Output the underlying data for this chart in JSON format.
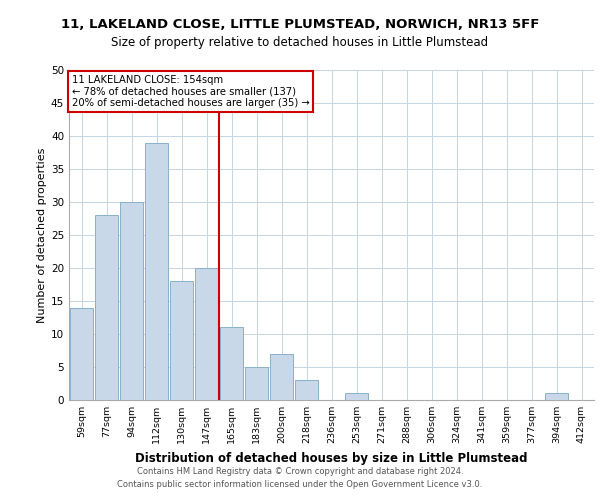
{
  "title_line1": "11, LAKELAND CLOSE, LITTLE PLUMSTEAD, NORWICH, NR13 5FF",
  "title_line2": "Size of property relative to detached houses in Little Plumstead",
  "xlabel": "Distribution of detached houses by size in Little Plumstead",
  "ylabel": "Number of detached properties",
  "bin_labels": [
    "59sqm",
    "77sqm",
    "94sqm",
    "112sqm",
    "130sqm",
    "147sqm",
    "165sqm",
    "183sqm",
    "200sqm",
    "218sqm",
    "236sqm",
    "253sqm",
    "271sqm",
    "288sqm",
    "306sqm",
    "324sqm",
    "341sqm",
    "359sqm",
    "377sqm",
    "394sqm",
    "412sqm"
  ],
  "bar_values": [
    14,
    28,
    30,
    39,
    18,
    20,
    11,
    5,
    7,
    3,
    0,
    1,
    0,
    0,
    0,
    0,
    0,
    0,
    0,
    1,
    0
  ],
  "bar_color": "#c8d8e8",
  "bar_edge_color": "#8ab0cc",
  "ylim": [
    0,
    50
  ],
  "yticks": [
    0,
    5,
    10,
    15,
    20,
    25,
    30,
    35,
    40,
    45,
    50
  ],
  "vline_x": 5.5,
  "vline_color": "#cc0000",
  "annotation_title": "11 LAKELAND CLOSE: 154sqm",
  "annotation_line1": "← 78% of detached houses are smaller (137)",
  "annotation_line2": "20% of semi-detached houses are larger (35) →",
  "annotation_box_color": "#cc0000",
  "footer_line1": "Contains HM Land Registry data © Crown copyright and database right 2024.",
  "footer_line2": "Contains public sector information licensed under the Open Government Licence v3.0.",
  "background_color": "#ffffff",
  "plot_background": "#ffffff"
}
